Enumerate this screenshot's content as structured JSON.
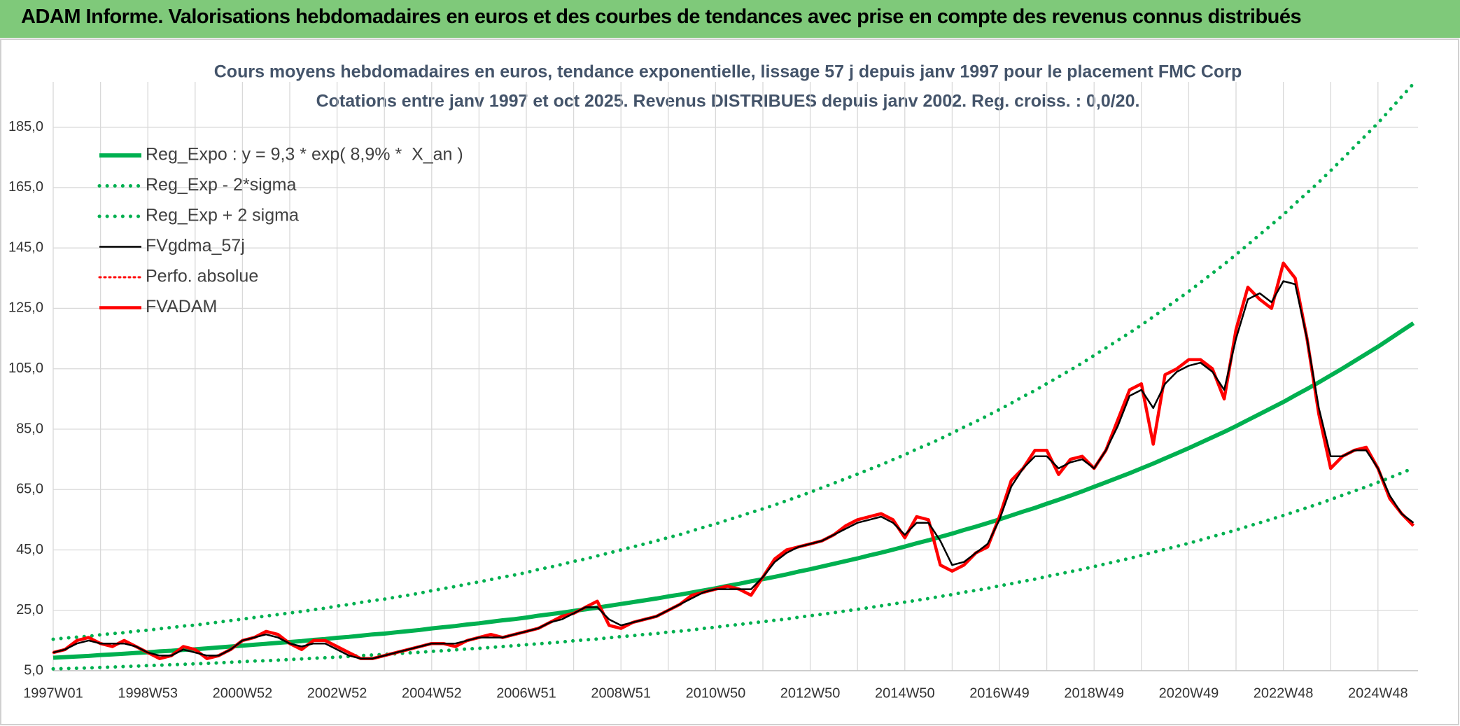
{
  "header": {
    "title": "ADAM Informe. Valorisations hebdomadaires en euros et des courbes de tendances avec prise en compte des revenus connus distribués"
  },
  "chart_data": {
    "type": "line",
    "title": "Cours moyens hebdomadaires en euros, tendance exponentielle, lissage 57 j depuis janv 1997 pour le placement FMC Corp",
    "subtitle": "Cotations entre janv 1997 et oct 2025. Revenus DISTRIBUES depuis janv 2002. Reg. croiss. : 0,0/20.",
    "categories": [
      "1997W01",
      null,
      null,
      null,
      null,
      null,
      null,
      null,
      "1998W53",
      null,
      null,
      null,
      null,
      null,
      null,
      null,
      "2000W52",
      null,
      null,
      null,
      null,
      null,
      null,
      null,
      "2002W52",
      null,
      null,
      null,
      null,
      null,
      null,
      null,
      "2004W52",
      null,
      null,
      null,
      null,
      null,
      null,
      null,
      "2006W51",
      null,
      null,
      null,
      null,
      null,
      null,
      null,
      "2008W51",
      null,
      null,
      null,
      null,
      null,
      null,
      null,
      "2010W50",
      null,
      null,
      null,
      null,
      null,
      null,
      null,
      "2012W50",
      null,
      null,
      null,
      null,
      null,
      null,
      null,
      "2014W50",
      null,
      null,
      null,
      null,
      null,
      null,
      null,
      "2016W49",
      null,
      null,
      null,
      null,
      null,
      null,
      null,
      "2018W49",
      null,
      null,
      null,
      null,
      null,
      null,
      null,
      "2020W49",
      null,
      null,
      null,
      null,
      null,
      null,
      null,
      "2022W48",
      null,
      null,
      null,
      null,
      null,
      null,
      null,
      "2024W48",
      null,
      null,
      null
    ],
    "ylim": [
      5,
      200
    ],
    "yticks": [
      {
        "value": 5,
        "label": "5,0"
      },
      {
        "value": 25,
        "label": "25,0"
      },
      {
        "value": 45,
        "label": "45,0"
      },
      {
        "value": 65,
        "label": "65,0"
      },
      {
        "value": 85,
        "label": "85,0"
      },
      {
        "value": 105,
        "label": "105,0"
      },
      {
        "value": 125,
        "label": "125,0"
      },
      {
        "value": 145,
        "label": "145,0"
      },
      {
        "value": 165,
        "label": "165,0"
      },
      {
        "value": 185,
        "label": "185,0"
      }
    ],
    "grid": true,
    "legend": "top-left",
    "series": [
      {
        "name": "Reg_Expo : y = 9,3 * exp( 8,9% *  X_an )",
        "color": "#00b050",
        "dash": "solid",
        "values": [
          9.3,
          9.5,
          9.7,
          9.9,
          10.2,
          10.4,
          10.6,
          10.9,
          11.1,
          11.4,
          11.6,
          11.9,
          12.1,
          12.4,
          12.7,
          13.0,
          13.3,
          13.6,
          13.9,
          14.2,
          14.5,
          14.8,
          15.2,
          15.5,
          15.9,
          16.2,
          16.6,
          17.0,
          17.3,
          17.7,
          18.1,
          18.5,
          19.0,
          19.4,
          19.8,
          20.3,
          20.7,
          21.2,
          21.7,
          22.1,
          22.6,
          23.2,
          23.7,
          24.2,
          24.8,
          25.3,
          25.9,
          26.5,
          27.1,
          27.7,
          28.3,
          28.9,
          29.6,
          30.2,
          30.9,
          31.6,
          32.3,
          33.1,
          33.8,
          34.6,
          35.3,
          36.1,
          36.9,
          37.8,
          38.6,
          39.5,
          40.4,
          41.3,
          42.2,
          43.2,
          44.1,
          45.1,
          46.1,
          47.2,
          48.2,
          49.3,
          50.4,
          51.6,
          52.7,
          53.9,
          55.1,
          56.4,
          57.7,
          58.9,
          60.3,
          61.6,
          63.0,
          64.4,
          65.9,
          67.4,
          68.9,
          70.4,
          72.0,
          73.6,
          75.3,
          77.0,
          78.7,
          80.5,
          82.3,
          84.1,
          86.0,
          88.0,
          90.0,
          92.0,
          94.0,
          96.2,
          98.3,
          100.5,
          102.8,
          105.1,
          107.5,
          109.9,
          112.3,
          114.9,
          117.5,
          120.1
        ]
      },
      {
        "name": "Reg_Exp - 2*sigma",
        "color": "#00b050",
        "dash": "dotted",
        "values": [
          5.6,
          5.7,
          5.8,
          5.9,
          6.1,
          6.2,
          6.4,
          6.5,
          6.7,
          6.8,
          7.0,
          7.1,
          7.3,
          7.4,
          7.6,
          7.8,
          8.0,
          8.2,
          8.3,
          8.5,
          8.7,
          8.9,
          9.1,
          9.3,
          9.5,
          9.7,
          10.0,
          10.2,
          10.4,
          10.6,
          10.9,
          11.1,
          11.4,
          11.6,
          11.9,
          12.2,
          12.4,
          12.7,
          13.0,
          13.3,
          13.6,
          13.9,
          14.2,
          14.5,
          14.9,
          15.2,
          15.5,
          15.9,
          16.3,
          16.6,
          17.0,
          17.3,
          17.8,
          18.1,
          18.5,
          19.0,
          19.4,
          19.9,
          20.3,
          20.8,
          21.2,
          21.7,
          22.1,
          22.7,
          23.2,
          23.7,
          24.2,
          24.8,
          25.3,
          25.9,
          26.5,
          27.1,
          27.7,
          28.3,
          28.9,
          29.6,
          30.2,
          31.0,
          31.6,
          32.3,
          33.1,
          33.8,
          34.6,
          35.3,
          36.2,
          37.0,
          37.8,
          38.6,
          39.5,
          40.4,
          41.3,
          42.2,
          43.2,
          44.2,
          45.2,
          46.2,
          47.2,
          48.3,
          49.4,
          50.5,
          51.6,
          52.8,
          54.0,
          55.2,
          56.4,
          57.7,
          59.0,
          60.3,
          61.7,
          63.1,
          64.5,
          65.9,
          67.4,
          68.9,
          70.5,
          72.1
        ]
      },
      {
        "name": "Reg_Exp + 2 sigma",
        "color": "#00b050",
        "dash": "dotted",
        "values": [
          15.4,
          15.8,
          16.1,
          16.4,
          16.9,
          17.3,
          17.6,
          18.1,
          18.4,
          18.9,
          19.3,
          19.8,
          20.1,
          20.6,
          21.1,
          21.6,
          22.1,
          22.6,
          23.1,
          23.6,
          24.1,
          24.6,
          25.2,
          25.7,
          26.4,
          26.9,
          27.6,
          28.2,
          28.7,
          29.4,
          30.0,
          30.7,
          31.5,
          32.2,
          32.9,
          33.7,
          34.4,
          35.2,
          36.0,
          36.7,
          37.5,
          38.5,
          39.3,
          40.2,
          41.2,
          42.0,
          43.0,
          44.0,
          45.0,
          46.0,
          47.0,
          48.0,
          49.1,
          50.1,
          51.3,
          52.5,
          53.6,
          54.9,
          56.1,
          57.4,
          58.6,
          59.9,
          61.3,
          62.7,
          64.1,
          65.6,
          67.1,
          68.6,
          70.1,
          71.7,
          73.2,
          74.9,
          76.5,
          78.4,
          80.0,
          81.8,
          83.7,
          85.7,
          87.5,
          89.5,
          91.5,
          93.6,
          95.8,
          97.8,
          100.1,
          102.3,
          104.6,
          106.9,
          109.4,
          111.9,
          114.4,
          116.9,
          119.5,
          122.2,
          125.0,
          127.8,
          130.6,
          133.6,
          136.6,
          139.6,
          142.8,
          146.1,
          149.4,
          152.7,
          156.0,
          159.7,
          163.2,
          166.8,
          170.6,
          174.5,
          178.5,
          182.4,
          186.4,
          190.7,
          195.1,
          199.4
        ]
      },
      {
        "name": "FVgdma_57j",
        "color": "#000000",
        "dash": "solid",
        "values": [
          11,
          12,
          14,
          15,
          14,
          14,
          14,
          13,
          11,
          10,
          10,
          12,
          11,
          10,
          10,
          12,
          15,
          16,
          17,
          16,
          14,
          13,
          14,
          14,
          12,
          10,
          9,
          9,
          10,
          11,
          12,
          13,
          14,
          14,
          14,
          15,
          16,
          16,
          16,
          17,
          18,
          19,
          21,
          22,
          24,
          26,
          26,
          22,
          20,
          21,
          22,
          23,
          25,
          27,
          29,
          31,
          32,
          32,
          32,
          32,
          36,
          41,
          44,
          46,
          47,
          48,
          50,
          52,
          54,
          55,
          56,
          54,
          50,
          54,
          54,
          48,
          40,
          41,
          44,
          47,
          55,
          66,
          72,
          76,
          76,
          72,
          74,
          75,
          72,
          78,
          86,
          96,
          98,
          92,
          100,
          104,
          106,
          107,
          104,
          98,
          115,
          128,
          130,
          127,
          134,
          133,
          115,
          92,
          76,
          76,
          78,
          78,
          72,
          63,
          57,
          54
        ]
      },
      {
        "name": "Perfo. absolue",
        "color": "#ff0000",
        "dash": "dotted",
        "values": [
          11,
          12,
          15,
          16,
          14,
          13,
          15,
          13,
          11,
          9,
          10,
          13,
          12,
          9,
          10,
          12,
          15,
          16,
          18,
          17,
          14,
          12,
          15,
          15,
          13,
          11,
          9,
          9,
          10,
          11,
          12,
          13,
          14,
          14,
          13,
          15,
          16,
          17,
          16,
          17,
          18,
          19,
          21,
          23,
          24,
          26,
          28,
          20,
          19,
          21,
          22,
          23,
          25,
          27,
          30,
          31,
          32,
          33,
          32,
          30,
          36,
          42,
          45,
          46,
          47,
          48,
          50,
          53,
          55,
          56,
          57,
          55,
          49,
          56,
          55,
          40,
          38,
          40,
          44,
          46,
          56,
          68,
          72,
          78,
          78,
          70,
          75,
          76,
          72,
          78,
          88,
          98,
          100,
          80,
          103,
          105,
          108,
          108,
          105,
          95,
          118,
          132,
          128,
          125,
          140,
          135,
          115,
          90,
          72,
          76,
          78,
          79,
          72,
          62,
          57,
          53
        ]
      },
      {
        "name": "FVADAM",
        "color": "#ff0000",
        "dash": "solid",
        "values": [
          11,
          12,
          15,
          16,
          14,
          13,
          15,
          13,
          11,
          9,
          10,
          13,
          12,
          9,
          10,
          12,
          15,
          16,
          18,
          17,
          14,
          12,
          15,
          15,
          13,
          11,
          9,
          9,
          10,
          11,
          12,
          13,
          14,
          14,
          13,
          15,
          16,
          17,
          16,
          17,
          18,
          19,
          21,
          23,
          24,
          26,
          28,
          20,
          19,
          21,
          22,
          23,
          25,
          27,
          30,
          31,
          32,
          33,
          32,
          30,
          36,
          42,
          45,
          46,
          47,
          48,
          50,
          53,
          55,
          56,
          57,
          55,
          49,
          56,
          55,
          40,
          38,
          40,
          44,
          46,
          56,
          68,
          72,
          78,
          78,
          70,
          75,
          76,
          72,
          78,
          88,
          98,
          100,
          80,
          103,
          105,
          108,
          108,
          105,
          95,
          118,
          132,
          128,
          125,
          140,
          135,
          115,
          90,
          72,
          76,
          78,
          79,
          72,
          62,
          57,
          53
        ]
      }
    ]
  }
}
